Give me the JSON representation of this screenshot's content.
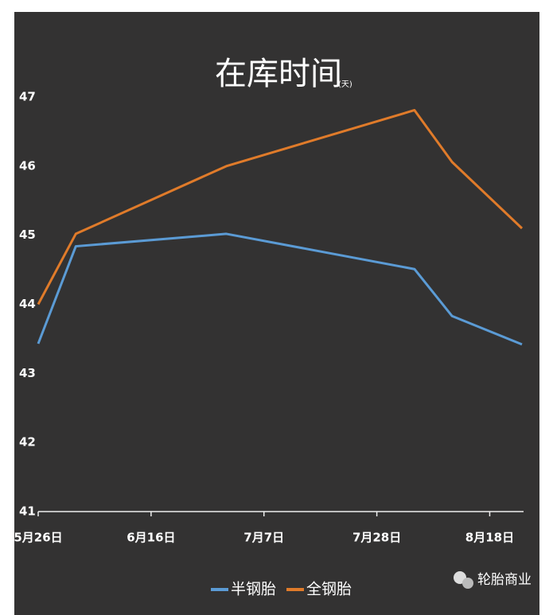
{
  "chart_data": {
    "type": "line",
    "title": "在库时间",
    "unit": "(天)",
    "x": [
      0,
      7,
      35,
      70,
      77,
      90
    ],
    "series": [
      {
        "name": "半钢胎",
        "color": "#5b9bd5",
        "values": [
          43.43,
          44.84,
          45.02,
          44.51,
          43.83,
          43.42
        ]
      },
      {
        "name": "全钢胎",
        "color": "#e07b2a",
        "values": [
          44.0,
          45.02,
          46.0,
          46.81,
          46.06,
          45.1
        ]
      }
    ],
    "xlim": [
      0,
      90
    ],
    "xticks": [
      {
        "value": 0,
        "label": "5月26日"
      },
      {
        "value": 21,
        "label": "6月16日"
      },
      {
        "value": 42,
        "label": "7月7日"
      },
      {
        "value": 63,
        "label": "7月28日"
      },
      {
        "value": 84,
        "label": "8月18日"
      }
    ],
    "ylim": [
      41,
      47
    ],
    "yticks": [
      41,
      42,
      43,
      44,
      45,
      46,
      47
    ],
    "legend": "bottom",
    "watermark": "轮胎商业",
    "background": "#333232"
  }
}
